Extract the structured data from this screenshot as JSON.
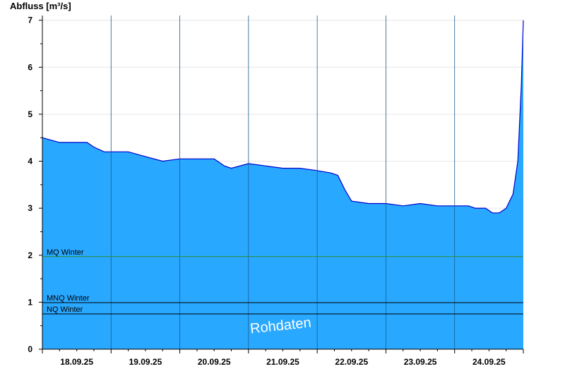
{
  "chart_data": {
    "type": "area",
    "title": "",
    "ylabel": "Abfluss [m³/s]",
    "xlabel": "",
    "ylim": [
      0,
      7.1
    ],
    "yticks": [
      0,
      1,
      2,
      3,
      4,
      5,
      6,
      7
    ],
    "xlim": [
      0,
      7
    ],
    "x_tick_labels": [
      "18.09.25",
      "19.09.25",
      "20.09.25",
      "21.09.25",
      "22.09.25",
      "23.09.25",
      "24.09.25"
    ],
    "grid": true,
    "fill_color": "#29a8ff",
    "line_color": "#0000cc",
    "reference_lines": [
      {
        "label": "MQ Winter",
        "value": 1.97,
        "color": "#2e8b2e"
      },
      {
        "label": "MNQ Winter",
        "value": 0.99,
        "color": "#000000"
      },
      {
        "label": "NQ Winter",
        "value": 0.75,
        "color": "#000000"
      }
    ],
    "watermark": "Rohdaten",
    "series": [
      {
        "x": [
          0,
          0.25,
          0.5,
          0.65,
          0.75,
          0.9,
          1.0,
          1.25,
          1.5,
          1.75,
          2.0,
          2.25,
          2.5,
          2.65,
          2.75,
          3.0,
          3.25,
          3.5,
          3.75,
          4.0,
          4.2,
          4.3,
          4.4,
          4.5,
          4.75,
          5.0,
          5.25,
          5.5,
          5.75,
          6.0,
          6.2,
          6.3,
          6.45,
          6.55,
          6.65,
          6.75,
          6.85,
          6.92,
          6.97,
          7.0
        ],
        "y": [
          4.5,
          4.4,
          4.4,
          4.4,
          4.3,
          4.2,
          4.2,
          4.2,
          4.1,
          4.0,
          4.05,
          4.05,
          4.05,
          3.9,
          3.85,
          3.95,
          3.9,
          3.85,
          3.85,
          3.8,
          3.75,
          3.7,
          3.4,
          3.15,
          3.1,
          3.1,
          3.05,
          3.1,
          3.05,
          3.05,
          3.05,
          3.0,
          3.0,
          2.9,
          2.9,
          3.0,
          3.3,
          4.0,
          5.6,
          7.0
        ]
      }
    ]
  }
}
